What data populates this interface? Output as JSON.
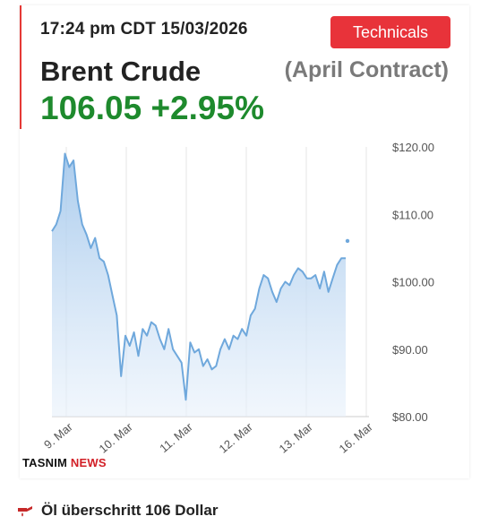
{
  "header": {
    "timestamp": "17:24 pm CDT 15/03/2026",
    "technicals_label": "Technicals",
    "instrument": "Brent Crude",
    "contract": "(April Contract)",
    "price": "106.05",
    "change": "+2.95%"
  },
  "colors": {
    "accent_red": "#e8333a",
    "price_green": "#1e8a2d",
    "line_blue": "#6fa8dc",
    "area_blue": "#cfe2f6"
  },
  "chart_data": {
    "type": "area",
    "title": "",
    "xlabel": "",
    "ylabel": "",
    "ylim": [
      80,
      120
    ],
    "y_ticks": [
      "$120.00",
      "$110.00",
      "$100.00",
      "$90.00",
      "$80.00"
    ],
    "x_ticks": [
      "9. Mar",
      "10. Mar",
      "11. Mar",
      "12. Mar",
      "13. Mar",
      "16. Mar"
    ],
    "grid": true,
    "series": [
      {
        "values": [
          107.5,
          108.5,
          110.5,
          119,
          117,
          118,
          112,
          108.5,
          107,
          105,
          106.5,
          103.5,
          103,
          101,
          98,
          95,
          86,
          92,
          90.5,
          92.5,
          89,
          93,
          92,
          94,
          93.5,
          91.5,
          90,
          93,
          90,
          89,
          88,
          82.5,
          91,
          89.5,
          90,
          87.5,
          88.5,
          87,
          87.5,
          90,
          91.5,
          90,
          92,
          91.5,
          93,
          92,
          95,
          96,
          99,
          101,
          100.5,
          98.5,
          97,
          99,
          100,
          99.5,
          101,
          102,
          101.5,
          100.5,
          100.5,
          101,
          99,
          101.5,
          98.5,
          100.5,
          102.5,
          103.5,
          103.5
        ],
        "last_marker": 106.05
      }
    ]
  },
  "source_logo": {
    "part1": "TASNIM",
    "part2": "NEWS"
  },
  "headline": {
    "text": "Öl überschritt 106 Dollar",
    "icon": "oil-drip-icon"
  }
}
